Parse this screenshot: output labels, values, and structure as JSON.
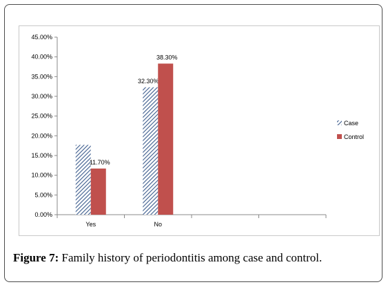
{
  "caption": {
    "label": "Figure 7:",
    "text": " Family history of periodontitis among case and control."
  },
  "chart_data": {
    "type": "bar",
    "title": "",
    "xlabel": "",
    "ylabel": "",
    "categories": [
      "Yes",
      "No",
      "",
      ""
    ],
    "ylim": [
      0,
      45
    ],
    "yticks": [
      "0.00%",
      "5.00%",
      "10.00%",
      "15.00%",
      "20.00%",
      "25.00%",
      "30.00%",
      "35.00%",
      "40.00%",
      "45.00%"
    ],
    "grid": false,
    "legend_position": "right",
    "series": [
      {
        "name": "Case",
        "values": [
          17.7,
          32.3,
          null,
          null
        ],
        "labels": [
          "",
          "32.30%",
          "",
          ""
        ],
        "fill": "hatched",
        "color": "#3b5b8c"
      },
      {
        "name": "Control",
        "values": [
          11.7,
          38.3,
          null,
          null
        ],
        "labels": [
          "11.70%",
          "38.30%",
          "",
          ""
        ],
        "fill": "solid",
        "color": "#c0504d"
      }
    ]
  }
}
